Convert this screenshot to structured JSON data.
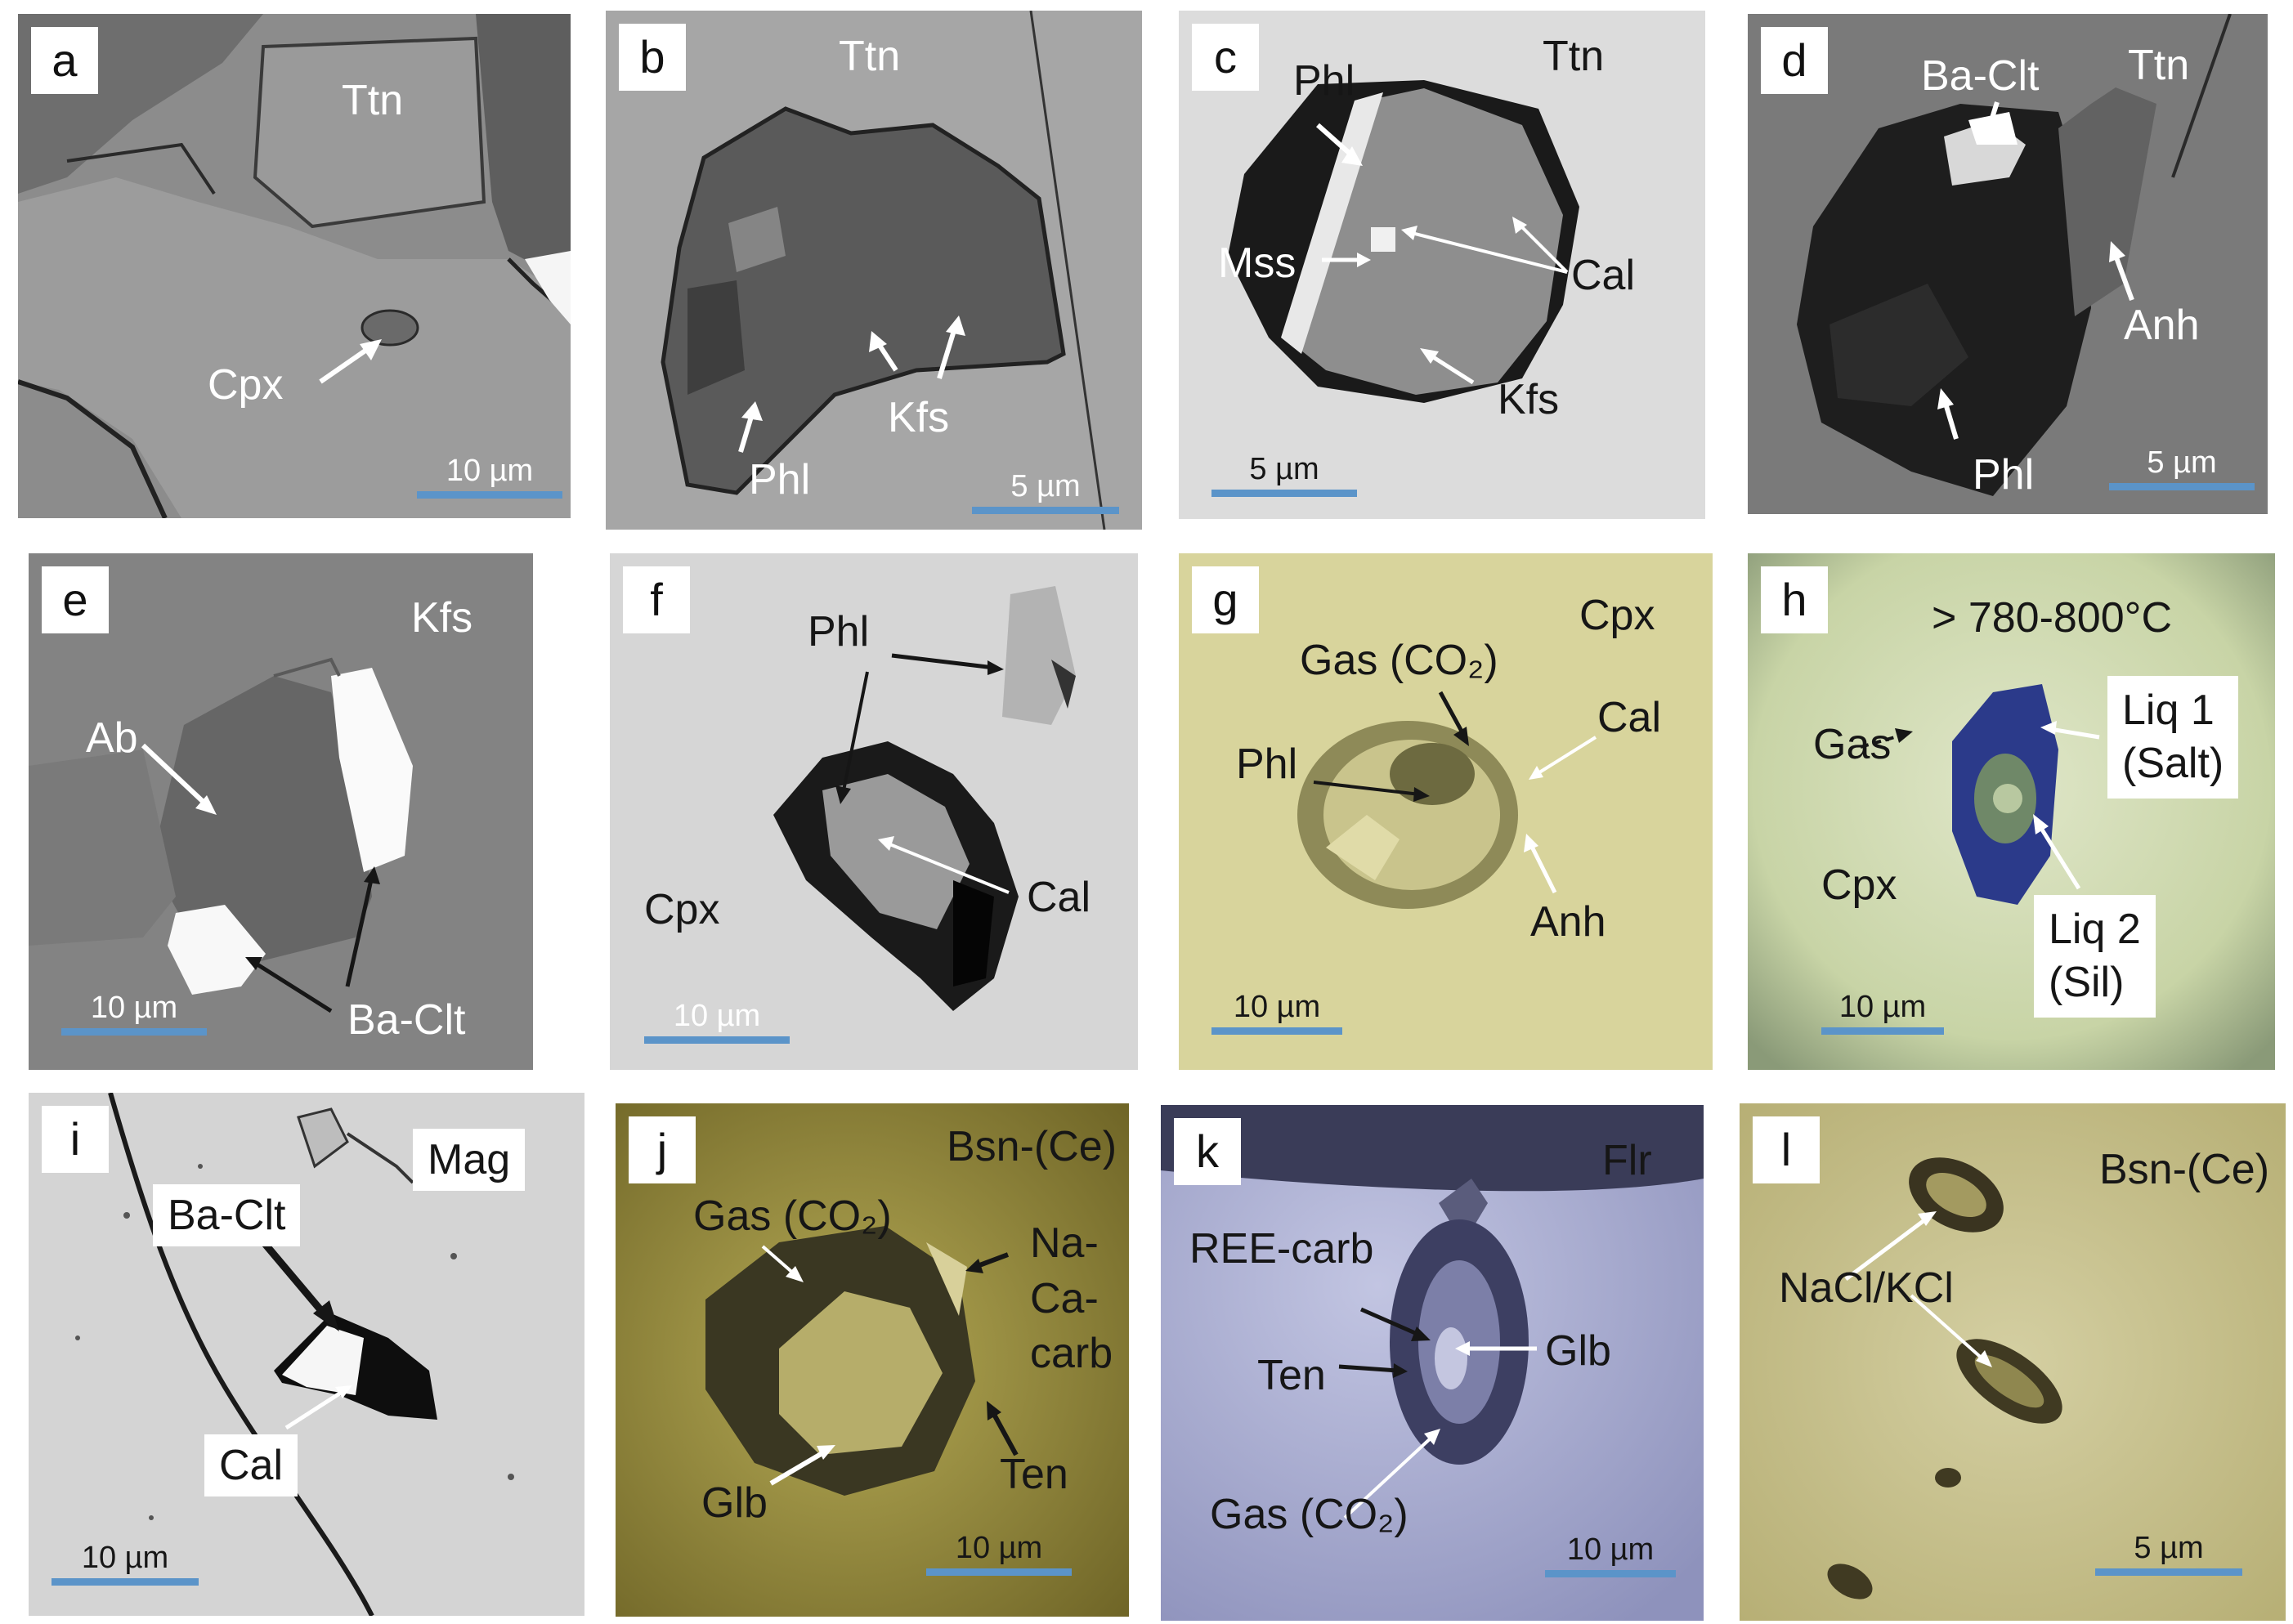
{
  "panels": {
    "a": {
      "letter": "a",
      "labels": {
        "host": "Ttn",
        "incl": "Cpx"
      },
      "scale": "10 µm"
    },
    "b": {
      "letter": "b",
      "labels": {
        "host": "Ttn",
        "phl": "Phl",
        "kfs": "Kfs"
      },
      "scale": "5 µm"
    },
    "c": {
      "letter": "c",
      "labels": {
        "host": "Ttn",
        "phl": "Phl",
        "mss": "Mss",
        "cal": "Cal",
        "kfs": "Kfs"
      },
      "scale": "5 µm"
    },
    "d": {
      "letter": "d",
      "labels": {
        "baclt": "Ba-Clt",
        "host": "Ttn",
        "anh": "Anh",
        "phl": "Phl"
      },
      "scale": "5 µm"
    },
    "e": {
      "letter": "e",
      "labels": {
        "host": "Kfs",
        "ab": "Ab",
        "baclt": "Ba-Clt"
      },
      "scale": "10 µm"
    },
    "f": {
      "letter": "f",
      "labels": {
        "phl": "Phl",
        "cal": "Cal",
        "host": "Cpx"
      },
      "scale": "10 µm"
    },
    "g": {
      "letter": "g",
      "labels": {
        "host": "Cpx",
        "gas": "Gas (CO₂)",
        "cal": "Cal",
        "phl": "Phl",
        "anh": "Anh"
      },
      "scale": "10 µm"
    },
    "h": {
      "letter": "h",
      "labels": {
        "temp": "> 780-800°C",
        "gas": "Gas",
        "liq1a": "Liq 1",
        "liq1b": "(Salt)",
        "host": "Cpx",
        "liq2a": "Liq 2",
        "liq2b": "(Sil)"
      },
      "scale": "10 µm"
    },
    "i": {
      "letter": "i",
      "labels": {
        "host": "Mag",
        "baclt": "Ba-Clt",
        "cal": "Cal"
      },
      "scale": "10 µm"
    },
    "j": {
      "letter": "j",
      "labels": {
        "host": "Bsn-(Ce)",
        "gas": "Gas (CO₂)",
        "na1": "Na-",
        "na2": "Ca-",
        "na3": "carb",
        "glb": "Glb",
        "ten": "Ten"
      },
      "scale": "10 µm"
    },
    "k": {
      "letter": "k",
      "labels": {
        "host": "Flr",
        "ree": "REE-carb",
        "ten": "Ten",
        "glb": "Glb",
        "gas": "Gas (CO₂)"
      },
      "scale": "10 µm"
    },
    "l": {
      "letter": "l",
      "labels": {
        "host": "Bsn-(Ce)",
        "nacl": "NaCl/KCl"
      },
      "scale": "5 µm"
    }
  },
  "colors": {
    "scale_bar": "#5b94c9",
    "bse_gray": "#8a8a8a",
    "optical_yellow": "#d2cc96",
    "optical_blue": "#a9aed2"
  }
}
